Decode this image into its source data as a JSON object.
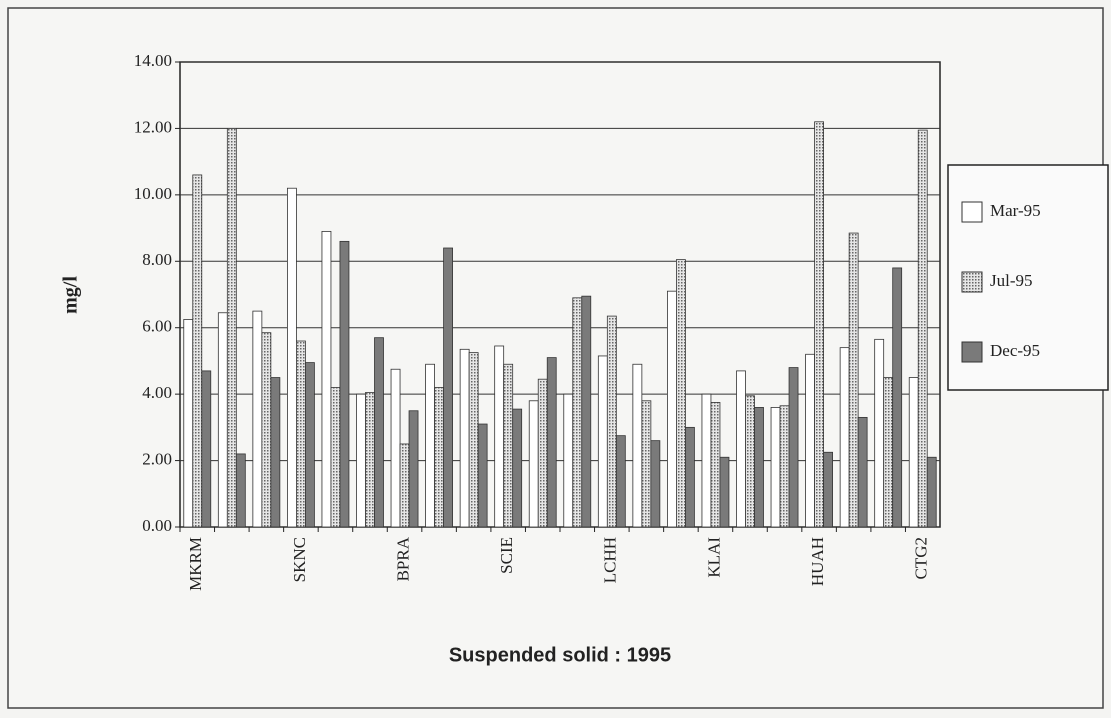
{
  "chart_data": {
    "type": "bar",
    "y_label": "mg/l",
    "x_label": "Suspended solid : 1995",
    "categories": [
      "MKRM",
      null,
      null,
      "SKNC",
      null,
      null,
      "BPRA",
      null,
      null,
      "SCIE",
      null,
      null,
      "LCHH",
      null,
      null,
      "KLAI",
      null,
      null,
      "HUAH",
      null,
      null,
      "CTG2"
    ],
    "series": [
      {
        "name": "Mar-95",
        "color": "#ffffff",
        "values": [
          6.25,
          6.45,
          6.5,
          10.2,
          8.9,
          4.0,
          4.75,
          4.9,
          5.35,
          5.45,
          3.8,
          4.0,
          5.15,
          4.9,
          7.1,
          4.0,
          4.7,
          3.6,
          5.2,
          5.4,
          5.65,
          4.5
        ]
      },
      {
        "name": "Jul-95",
        "color": "#c8c8c8",
        "values": [
          10.6,
          12.0,
          5.85,
          5.6,
          4.2,
          4.05,
          2.5,
          4.2,
          5.25,
          4.9,
          4.45,
          6.9,
          6.35,
          3.8,
          8.05,
          3.75,
          3.95,
          3.65,
          12.2,
          8.85,
          4.5,
          11.95
        ]
      },
      {
        "name": "Dec-95",
        "color": "#7a7a7a",
        "values": [
          4.7,
          2.2,
          4.5,
          4.95,
          8.6,
          5.7,
          3.5,
          8.4,
          3.1,
          3.55,
          5.1,
          6.95,
          2.75,
          2.6,
          3.0,
          2.1,
          3.6,
          4.8,
          2.25,
          3.3,
          7.8,
          2.1
        ]
      }
    ],
    "ylim": [
      0,
      14
    ],
    "yticks": [
      {
        "value": 0,
        "label": "0.00"
      },
      {
        "value": 2,
        "label": "2.00"
      },
      {
        "value": 4,
        "label": "4.00"
      },
      {
        "value": 6,
        "label": "6.00"
      },
      {
        "value": 8,
        "label": "8.00"
      },
      {
        "value": 10,
        "label": "10.00"
      },
      {
        "value": 12,
        "label": "12.00"
      },
      {
        "value": 14,
        "label": "14.00"
      }
    ],
    "grid": true
  }
}
